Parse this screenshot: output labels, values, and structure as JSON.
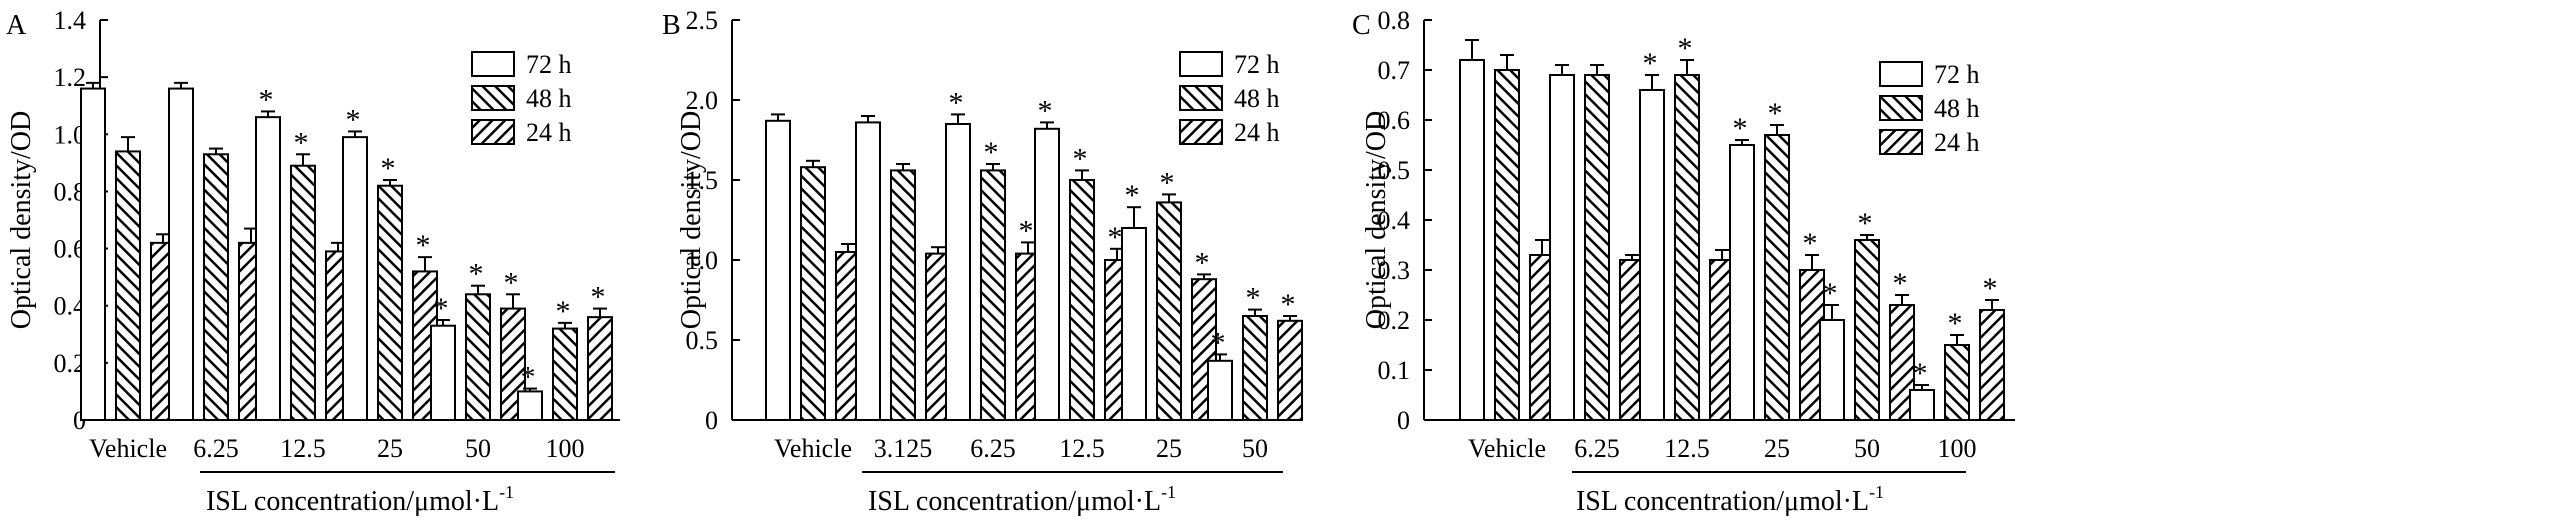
{
  "legend": {
    "labels": [
      "72 h",
      "48 h",
      "24 h"
    ]
  },
  "chart_data": [
    {
      "type": "bar",
      "panel_label": "A",
      "ylabel": "Optical density/OD",
      "xlabel": "ISL concentration/μmol·L",
      "xlabel_sup": "-1",
      "ylim": [
        0,
        1.4
      ],
      "yticks": [
        "0",
        "0.2",
        "0.4",
        "0.6",
        "0.8",
        "1.0",
        "1.2",
        "1.4"
      ],
      "categories": [
        "Vehicle",
        "6.25",
        "12.5",
        "25",
        "50",
        "100"
      ],
      "series": [
        {
          "name": "72 h",
          "values": [
            1.16,
            1.16,
            1.06,
            0.99,
            0.33,
            0.1
          ],
          "errors": [
            0.02,
            0.02,
            0.02,
            0.02,
            0.02,
            0.01
          ],
          "sig": [
            false,
            false,
            true,
            true,
            true,
            true
          ]
        },
        {
          "name": "48 h",
          "values": [
            0.94,
            0.93,
            0.89,
            0.82,
            0.44,
            0.32
          ],
          "errors": [
            0.05,
            0.02,
            0.04,
            0.02,
            0.03,
            0.02
          ],
          "sig": [
            false,
            false,
            true,
            true,
            true,
            true
          ]
        },
        {
          "name": "24 h",
          "values": [
            0.62,
            0.62,
            0.59,
            0.52,
            0.39,
            0.36
          ],
          "errors": [
            0.03,
            0.05,
            0.03,
            0.05,
            0.05,
            0.03
          ],
          "sig": [
            false,
            false,
            false,
            true,
            true,
            true
          ]
        }
      ],
      "sig_symbol": "*"
    },
    {
      "type": "bar",
      "panel_label": "B",
      "ylabel": "Optical density/OD",
      "xlabel": "ISL concentration/μmol·L",
      "xlabel_sup": "-1",
      "ylim": [
        0,
        2.5
      ],
      "yticks": [
        "0",
        "0.5",
        "1.0",
        "1.5",
        "2.0",
        "2.5"
      ],
      "categories": [
        "Vehicle",
        "3.125",
        "6.25",
        "12.5",
        "25",
        "50"
      ],
      "series": [
        {
          "name": "72 h",
          "values": [
            1.87,
            1.86,
            1.85,
            1.82,
            1.2,
            0.37
          ],
          "errors": [
            0.04,
            0.04,
            0.06,
            0.04,
            0.13,
            0.04
          ],
          "sig": [
            false,
            false,
            true,
            true,
            true,
            true
          ]
        },
        {
          "name": "48 h",
          "values": [
            1.58,
            1.56,
            1.56,
            1.5,
            1.36,
            0.65
          ],
          "errors": [
            0.04,
            0.04,
            0.04,
            0.06,
            0.05,
            0.04
          ],
          "sig": [
            false,
            false,
            true,
            true,
            true,
            true
          ]
        },
        {
          "name": "24 h",
          "values": [
            1.05,
            1.04,
            1.04,
            1.0,
            0.88,
            0.62
          ],
          "errors": [
            0.05,
            0.04,
            0.07,
            0.07,
            0.03,
            0.03
          ],
          "sig": [
            false,
            false,
            true,
            true,
            true,
            true
          ]
        }
      ],
      "sig_symbol": "*"
    },
    {
      "type": "bar",
      "panel_label": "C",
      "ylabel": "Optical density/OD",
      "xlabel": "ISL concentration/μmol·L",
      "xlabel_sup": "-1",
      "ylim": [
        0,
        0.8
      ],
      "yticks": [
        "0",
        "0.1",
        "0.2",
        "0.3",
        "0.4",
        "0.5",
        "0.6",
        "0.7",
        "0.8"
      ],
      "categories": [
        "Vehicle",
        "6.25",
        "12.5",
        "25",
        "50",
        "100"
      ],
      "series": [
        {
          "name": "72 h",
          "values": [
            0.72,
            0.69,
            0.66,
            0.55,
            0.2,
            0.06
          ],
          "errors": [
            0.04,
            0.02,
            0.03,
            0.01,
            0.03,
            0.01
          ],
          "sig": [
            false,
            false,
            true,
            true,
            true,
            true
          ]
        },
        {
          "name": "48 h",
          "values": [
            0.7,
            0.69,
            0.69,
            0.57,
            0.36,
            0.15
          ],
          "errors": [
            0.03,
            0.02,
            0.03,
            0.02,
            0.01,
            0.02
          ],
          "sig": [
            false,
            false,
            true,
            true,
            true,
            true
          ]
        },
        {
          "name": "24 h",
          "values": [
            0.33,
            0.32,
            0.32,
            0.3,
            0.23,
            0.22
          ],
          "errors": [
            0.03,
            0.01,
            0.02,
            0.03,
            0.02,
            0.02
          ],
          "sig": [
            false,
            false,
            false,
            true,
            true,
            true
          ]
        }
      ],
      "sig_symbol": "*"
    }
  ]
}
